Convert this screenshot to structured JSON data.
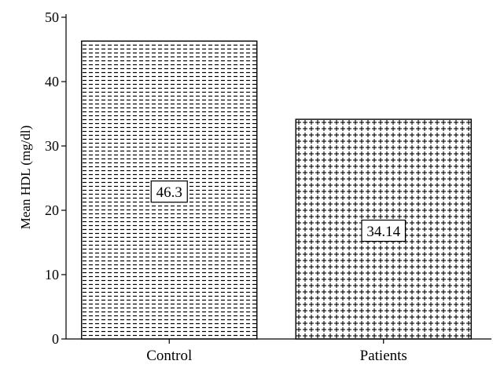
{
  "chart_data": {
    "type": "bar",
    "categories": [
      "Control",
      "Patients"
    ],
    "values": [
      46.3,
      34.14
    ],
    "data_labels": [
      "46.3",
      "34.14"
    ],
    "title": "",
    "xlabel": "",
    "ylabel": "Mean HDL (mg/dl)",
    "ylim": [
      0,
      50
    ],
    "yticks": [
      0,
      10,
      20,
      30,
      40,
      50
    ],
    "grid": false,
    "legend": "none",
    "bar_fill_patterns": [
      "dashes",
      "crosses"
    ]
  }
}
